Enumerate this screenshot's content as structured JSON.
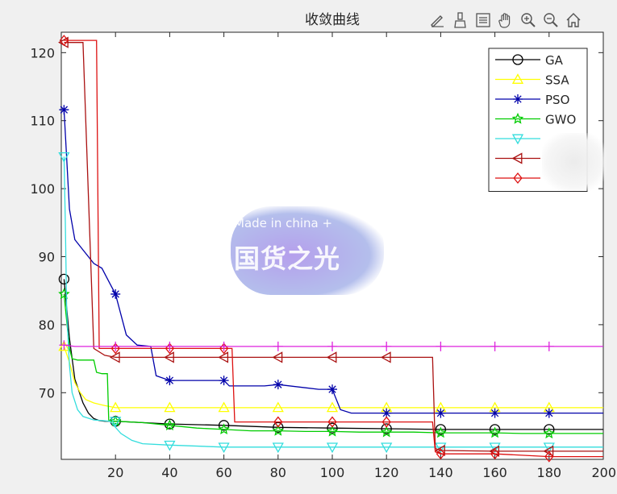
{
  "toolbar": {
    "items": [
      {
        "name": "edit-plot-icon"
      },
      {
        "name": "brush-icon"
      },
      {
        "name": "legend-toggle-icon"
      },
      {
        "name": "pan-hand-icon"
      },
      {
        "name": "zoom-in-icon"
      },
      {
        "name": "zoom-out-icon"
      },
      {
        "name": "home-icon"
      }
    ]
  },
  "watermark": {
    "line1": "Made in china +",
    "line2": "国货之光"
  },
  "chart_data": {
    "type": "line",
    "title": "收敛曲线",
    "xlabel": "",
    "ylabel": "",
    "xlim": [
      0,
      200
    ],
    "ylim": [
      60.2,
      123
    ],
    "xticks": [
      20,
      40,
      60,
      80,
      100,
      120,
      140,
      160,
      180,
      200
    ],
    "yticks": [
      70,
      80,
      90,
      100,
      110,
      120
    ],
    "legend_position": "top-right",
    "grid": false,
    "series": [
      {
        "name": "GA",
        "color": "#000000",
        "marker": "circle",
        "x": [
          1,
          3,
          5,
          8,
          10,
          12,
          14,
          16,
          18,
          20,
          40,
          60,
          80,
          100,
          120,
          140,
          160,
          180,
          200
        ],
        "y": [
          86.7,
          78,
          72,
          68.5,
          67,
          66.2,
          65.9,
          65.8,
          65.8,
          65.8,
          65.4,
          65.2,
          64.9,
          64.8,
          64.7,
          64.6,
          64.6,
          64.6,
          64.6
        ]
      },
      {
        "name": "SSA",
        "color": "#ffff00",
        "marker": "triangle-up",
        "x": [
          1,
          3,
          5,
          7,
          9,
          12,
          16,
          20,
          40,
          60,
          80,
          100,
          120,
          140,
          160,
          180,
          200
        ],
        "y": [
          76.8,
          74.5,
          71.5,
          70,
          69,
          68.5,
          68.1,
          67.8,
          67.8,
          67.8,
          67.8,
          67.8,
          67.8,
          67.8,
          67.8,
          67.8,
          67.8
        ]
      },
      {
        "name": "PSO",
        "color": "#0000aa",
        "marker": "star",
        "x": [
          1,
          3,
          5,
          8,
          12,
          15,
          18,
          20,
          24,
          28,
          33,
          35,
          40,
          60,
          62,
          75,
          80,
          95,
          100,
          103,
          107,
          120,
          140,
          160,
          180,
          200
        ],
        "y": [
          111.6,
          97,
          92.5,
          91,
          89,
          88.3,
          86,
          84.5,
          78.5,
          77,
          76.8,
          72.5,
          71.8,
          71.8,
          71,
          71,
          71.2,
          70.5,
          70.5,
          67.5,
          67,
          67,
          67,
          67,
          67,
          67
        ]
      },
      {
        "name": "GWO",
        "color": "#00cc00",
        "marker": "pentagram",
        "x": [
          1,
          2,
          3,
          4,
          6,
          8,
          10,
          12,
          13,
          15,
          16,
          17,
          17.5,
          18,
          20,
          30,
          40,
          50,
          60,
          70,
          80,
          90,
          100,
          110,
          120,
          130,
          140,
          150,
          160,
          170,
          180,
          190,
          200
        ],
        "y": [
          84.5,
          80.5,
          76.5,
          75,
          74.8,
          74.8,
          74.8,
          74.8,
          73,
          72.8,
          72.8,
          72.8,
          66,
          65.8,
          65.8,
          65.6,
          65.2,
          64.8,
          64.6,
          64.4,
          64.4,
          64.3,
          64.3,
          64.2,
          64.2,
          64.2,
          64.1,
          64.1,
          64.1,
          64.0,
          64.0,
          64.0,
          64.0
        ]
      },
      {
        "name": "",
        "color": "#33dddd",
        "marker": "triangle-down",
        "x": [
          1,
          1.5,
          2,
          3,
          4,
          6,
          8,
          12,
          18,
          22,
          26,
          30,
          40,
          60,
          80,
          100,
          120,
          140,
          160,
          180,
          200
        ],
        "y": [
          104.7,
          95,
          82,
          74,
          70,
          67.5,
          66.5,
          66,
          65.8,
          64,
          63,
          62.5,
          62.3,
          62,
          62,
          62,
          62,
          62,
          62,
          62,
          62
        ]
      },
      {
        "name": "",
        "color": "#aa1111",
        "marker": "triangle-left",
        "x": [
          1,
          4,
          8,
          12,
          16,
          20,
          40,
          60,
          80,
          100,
          120,
          137,
          138,
          140,
          160,
          180,
          200
        ],
        "y": [
          121.5,
          121.5,
          121.5,
          76.5,
          75.5,
          75.2,
          75.2,
          75.2,
          75.2,
          75.2,
          75.2,
          75.2,
          61.8,
          61.5,
          61.4,
          61.4,
          61.4
        ]
      },
      {
        "name": "",
        "color": "#dd1111",
        "marker": "diamond",
        "x": [
          1,
          4,
          8,
          13,
          14,
          20,
          40,
          60,
          63,
          64,
          80,
          100,
          120,
          137,
          138,
          140,
          160,
          180,
          200
        ],
        "y": [
          121.8,
          121.8,
          121.8,
          121.8,
          76.5,
          76.5,
          76.5,
          76.5,
          76.5,
          65.7,
          65.7,
          65.7,
          65.7,
          65.7,
          61.3,
          61,
          61,
          60.6,
          60.6
        ]
      },
      {
        "name": "",
        "color": "#dd22dd",
        "marker": "plus",
        "x": [
          1,
          5,
          10,
          20,
          40,
          60,
          80,
          100,
          120,
          140,
          160,
          180,
          200
        ],
        "y": [
          77,
          76.8,
          76.8,
          76.8,
          76.8,
          76.8,
          76.8,
          76.8,
          76.8,
          76.8,
          76.8,
          76.8,
          76.8
        ]
      }
    ]
  }
}
